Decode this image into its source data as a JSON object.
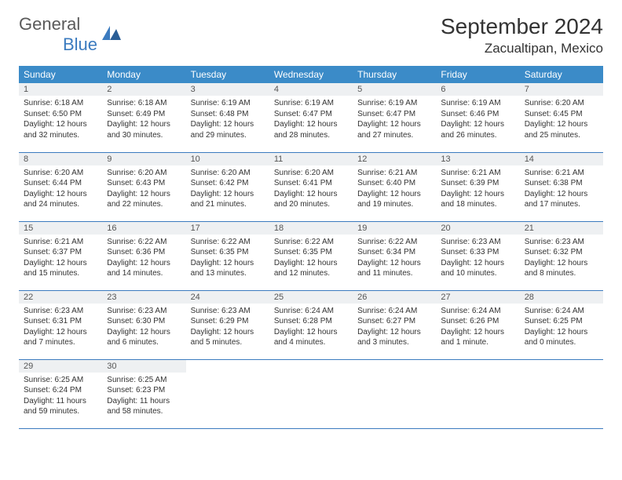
{
  "brand": {
    "main": "General",
    "sub": "Blue"
  },
  "title": {
    "month": "September 2024",
    "location": "Zacualtipan, Mexico"
  },
  "colors": {
    "header_bg": "#3b8bc8",
    "accent": "#3b7bbf",
    "daynum_bg": "#eef0f2"
  },
  "dayNames": [
    "Sunday",
    "Monday",
    "Tuesday",
    "Wednesday",
    "Thursday",
    "Friday",
    "Saturday"
  ],
  "weeks": [
    [
      {
        "n": "1",
        "sr": "Sunrise: 6:18 AM",
        "ss": "Sunset: 6:50 PM",
        "dl": "Daylight: 12 hours and 32 minutes."
      },
      {
        "n": "2",
        "sr": "Sunrise: 6:18 AM",
        "ss": "Sunset: 6:49 PM",
        "dl": "Daylight: 12 hours and 30 minutes."
      },
      {
        "n": "3",
        "sr": "Sunrise: 6:19 AM",
        "ss": "Sunset: 6:48 PM",
        "dl": "Daylight: 12 hours and 29 minutes."
      },
      {
        "n": "4",
        "sr": "Sunrise: 6:19 AM",
        "ss": "Sunset: 6:47 PM",
        "dl": "Daylight: 12 hours and 28 minutes."
      },
      {
        "n": "5",
        "sr": "Sunrise: 6:19 AM",
        "ss": "Sunset: 6:47 PM",
        "dl": "Daylight: 12 hours and 27 minutes."
      },
      {
        "n": "6",
        "sr": "Sunrise: 6:19 AM",
        "ss": "Sunset: 6:46 PM",
        "dl": "Daylight: 12 hours and 26 minutes."
      },
      {
        "n": "7",
        "sr": "Sunrise: 6:20 AM",
        "ss": "Sunset: 6:45 PM",
        "dl": "Daylight: 12 hours and 25 minutes."
      }
    ],
    [
      {
        "n": "8",
        "sr": "Sunrise: 6:20 AM",
        "ss": "Sunset: 6:44 PM",
        "dl": "Daylight: 12 hours and 24 minutes."
      },
      {
        "n": "9",
        "sr": "Sunrise: 6:20 AM",
        "ss": "Sunset: 6:43 PM",
        "dl": "Daylight: 12 hours and 22 minutes."
      },
      {
        "n": "10",
        "sr": "Sunrise: 6:20 AM",
        "ss": "Sunset: 6:42 PM",
        "dl": "Daylight: 12 hours and 21 minutes."
      },
      {
        "n": "11",
        "sr": "Sunrise: 6:20 AM",
        "ss": "Sunset: 6:41 PM",
        "dl": "Daylight: 12 hours and 20 minutes."
      },
      {
        "n": "12",
        "sr": "Sunrise: 6:21 AM",
        "ss": "Sunset: 6:40 PM",
        "dl": "Daylight: 12 hours and 19 minutes."
      },
      {
        "n": "13",
        "sr": "Sunrise: 6:21 AM",
        "ss": "Sunset: 6:39 PM",
        "dl": "Daylight: 12 hours and 18 minutes."
      },
      {
        "n": "14",
        "sr": "Sunrise: 6:21 AM",
        "ss": "Sunset: 6:38 PM",
        "dl": "Daylight: 12 hours and 17 minutes."
      }
    ],
    [
      {
        "n": "15",
        "sr": "Sunrise: 6:21 AM",
        "ss": "Sunset: 6:37 PM",
        "dl": "Daylight: 12 hours and 15 minutes."
      },
      {
        "n": "16",
        "sr": "Sunrise: 6:22 AM",
        "ss": "Sunset: 6:36 PM",
        "dl": "Daylight: 12 hours and 14 minutes."
      },
      {
        "n": "17",
        "sr": "Sunrise: 6:22 AM",
        "ss": "Sunset: 6:35 PM",
        "dl": "Daylight: 12 hours and 13 minutes."
      },
      {
        "n": "18",
        "sr": "Sunrise: 6:22 AM",
        "ss": "Sunset: 6:35 PM",
        "dl": "Daylight: 12 hours and 12 minutes."
      },
      {
        "n": "19",
        "sr": "Sunrise: 6:22 AM",
        "ss": "Sunset: 6:34 PM",
        "dl": "Daylight: 12 hours and 11 minutes."
      },
      {
        "n": "20",
        "sr": "Sunrise: 6:23 AM",
        "ss": "Sunset: 6:33 PM",
        "dl": "Daylight: 12 hours and 10 minutes."
      },
      {
        "n": "21",
        "sr": "Sunrise: 6:23 AM",
        "ss": "Sunset: 6:32 PM",
        "dl": "Daylight: 12 hours and 8 minutes."
      }
    ],
    [
      {
        "n": "22",
        "sr": "Sunrise: 6:23 AM",
        "ss": "Sunset: 6:31 PM",
        "dl": "Daylight: 12 hours and 7 minutes."
      },
      {
        "n": "23",
        "sr": "Sunrise: 6:23 AM",
        "ss": "Sunset: 6:30 PM",
        "dl": "Daylight: 12 hours and 6 minutes."
      },
      {
        "n": "24",
        "sr": "Sunrise: 6:23 AM",
        "ss": "Sunset: 6:29 PM",
        "dl": "Daylight: 12 hours and 5 minutes."
      },
      {
        "n": "25",
        "sr": "Sunrise: 6:24 AM",
        "ss": "Sunset: 6:28 PM",
        "dl": "Daylight: 12 hours and 4 minutes."
      },
      {
        "n": "26",
        "sr": "Sunrise: 6:24 AM",
        "ss": "Sunset: 6:27 PM",
        "dl": "Daylight: 12 hours and 3 minutes."
      },
      {
        "n": "27",
        "sr": "Sunrise: 6:24 AM",
        "ss": "Sunset: 6:26 PM",
        "dl": "Daylight: 12 hours and 1 minute."
      },
      {
        "n": "28",
        "sr": "Sunrise: 6:24 AM",
        "ss": "Sunset: 6:25 PM",
        "dl": "Daylight: 12 hours and 0 minutes."
      }
    ],
    [
      {
        "n": "29",
        "sr": "Sunrise: 6:25 AM",
        "ss": "Sunset: 6:24 PM",
        "dl": "Daylight: 11 hours and 59 minutes."
      },
      {
        "n": "30",
        "sr": "Sunrise: 6:25 AM",
        "ss": "Sunset: 6:23 PM",
        "dl": "Daylight: 11 hours and 58 minutes."
      },
      null,
      null,
      null,
      null,
      null
    ]
  ]
}
